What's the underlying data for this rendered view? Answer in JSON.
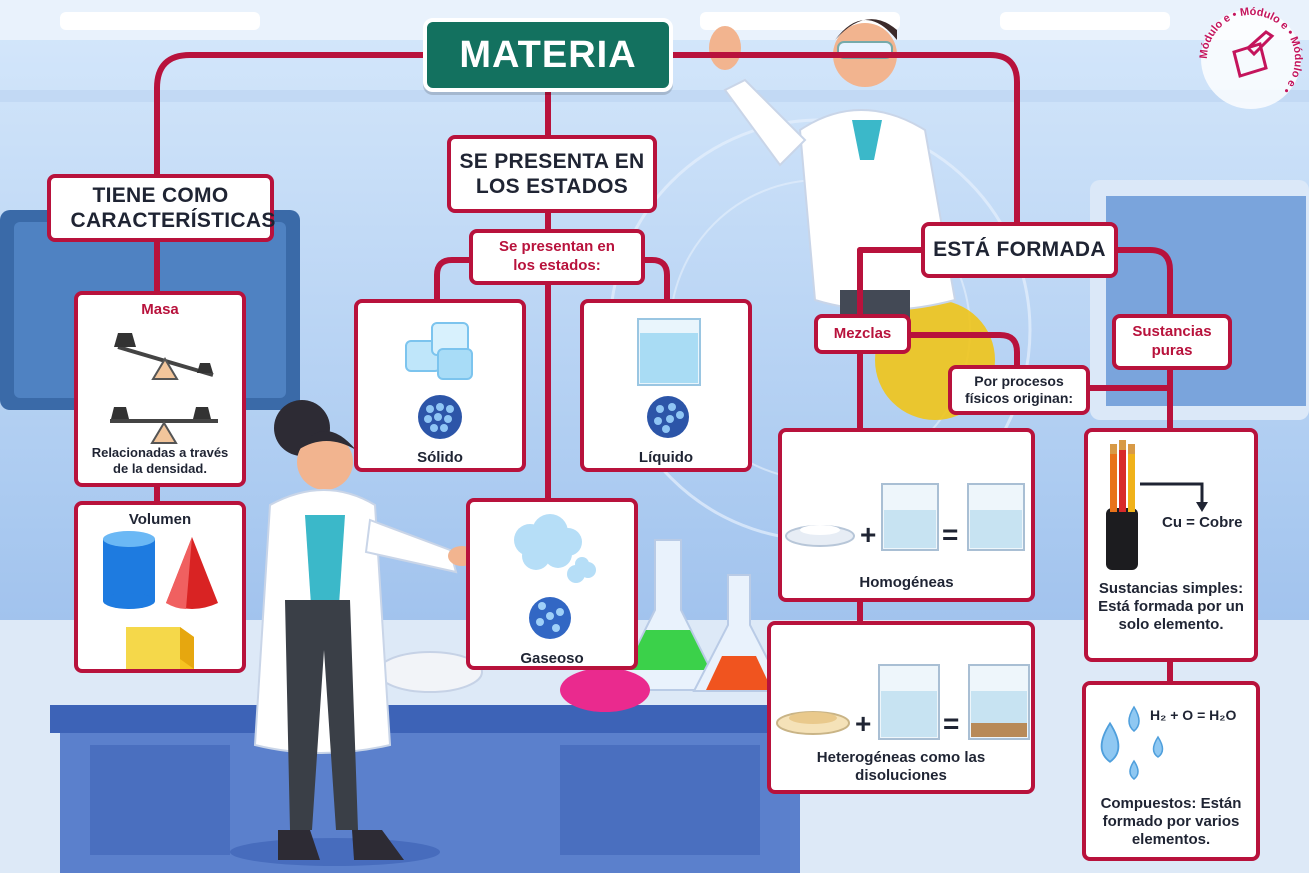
{
  "title": "MATERIA",
  "logo": {
    "text": "Módulo e • Módulo e • Módulo e •"
  },
  "colors": {
    "accent": "#b8123c",
    "title_bg": "#13715f",
    "sky": "#8fb9ea"
  },
  "characteristics": {
    "header": "TIENE COMO CARACTERÍSTICAS",
    "masa": {
      "label": "Masa",
      "caption": "Relacionadas a través de la densidad.",
      "icon": "balance-scale-icon"
    },
    "volumen": {
      "label": "Volumen",
      "icon": "geometric-shapes-icon"
    }
  },
  "states": {
    "header": "SE PRESENTA EN LOS ESTADOS",
    "subheader": "Se presentan en los estados:",
    "solido": {
      "label": "Sólido",
      "icon": "ice-cubes-icon"
    },
    "liquido": {
      "label": "Líquido",
      "icon": "water-beaker-icon"
    },
    "gaseoso": {
      "label": "Gaseoso",
      "icon": "cloud-icon"
    }
  },
  "formed": {
    "header": "ESTÁ FORMADA",
    "mezclas": "Mezclas",
    "procesos": "Por procesos físicos originan:",
    "homogeneas": {
      "label": "Homogéneas",
      "icon": "mixing-homogeneous-icon"
    },
    "heterogeneas": {
      "label": "Heterogéneas como las disoluciones",
      "icon": "mixing-heterogeneous-icon"
    },
    "sustancias_puras": "Sustancias puras",
    "simples": {
      "formula": "Cu = Cobre",
      "caption": "Sustancias simples: Está formada por un solo elemento.",
      "icon": "copper-cable-icon"
    },
    "compuestos": {
      "formula": "H₂ + O = H₂O",
      "caption": "Compuestos: Están formado por varios elementos.",
      "icon": "water-drops-icon"
    }
  }
}
